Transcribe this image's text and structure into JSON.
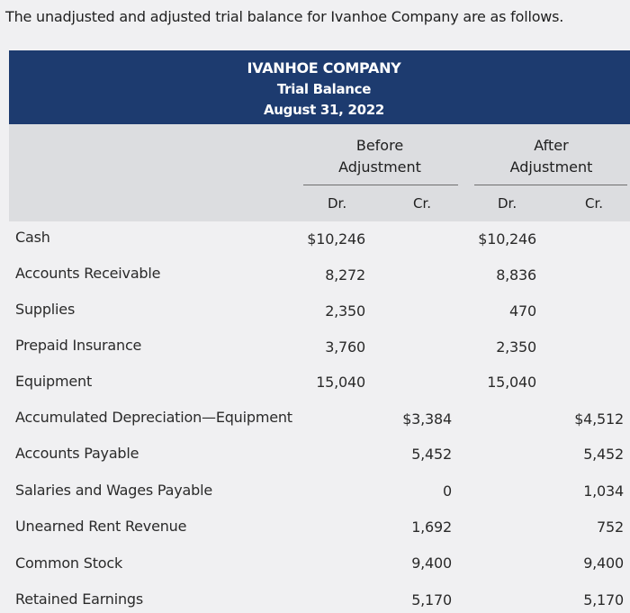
{
  "intro": "The unadjusted and adjusted trial balance for Ivanhoe Company are as follows.",
  "header": {
    "company": "IVANHOE COMPANY",
    "statement": "Trial Balance",
    "date": "August 31, 2022"
  },
  "columns": {
    "before_label_1": "Before",
    "before_label_2": "Adjustment",
    "after_label_1": "After",
    "after_label_2": "Adjustment",
    "before_dr": "Dr.",
    "before_cr": "Cr.",
    "after_dr": "Dr.",
    "after_cr": "Cr."
  },
  "rows": [
    {
      "account": "Cash",
      "before_dr": "$10,246",
      "before_cr": "",
      "after_dr": "$10,246",
      "after_cr": ""
    },
    {
      "account": "Accounts Receivable",
      "before_dr": "8,272",
      "before_cr": "",
      "after_dr": "8,836",
      "after_cr": ""
    },
    {
      "account": "Supplies",
      "before_dr": "2,350",
      "before_cr": "",
      "after_dr": "470",
      "after_cr": ""
    },
    {
      "account": "Prepaid Insurance",
      "before_dr": "3,760",
      "before_cr": "",
      "after_dr": "2,350",
      "after_cr": ""
    },
    {
      "account": "Equipment",
      "before_dr": "15,040",
      "before_cr": "",
      "after_dr": "15,040",
      "after_cr": ""
    },
    {
      "account": "Accumulated Depreciation—Equipment",
      "before_dr": "",
      "before_cr": "$3,384",
      "after_dr": "",
      "after_cr": "$4,512"
    },
    {
      "account": "Accounts Payable",
      "before_dr": "",
      "before_cr": "5,452",
      "after_dr": "",
      "after_cr": "5,452"
    },
    {
      "account": "Salaries and Wages Payable",
      "before_dr": "",
      "before_cr": "0",
      "after_dr": "",
      "after_cr": "1,034"
    },
    {
      "account": "Unearned Rent Revenue",
      "before_dr": "",
      "before_cr": "1,692",
      "after_dr": "",
      "after_cr": "752"
    },
    {
      "account": "Common Stock",
      "before_dr": "",
      "before_cr": "9,400",
      "after_dr": "",
      "after_cr": "9,400"
    },
    {
      "account": "Retained Earnings",
      "before_dr": "",
      "before_cr": "5,170",
      "after_dr": "",
      "after_cr": "5,170"
    }
  ]
}
